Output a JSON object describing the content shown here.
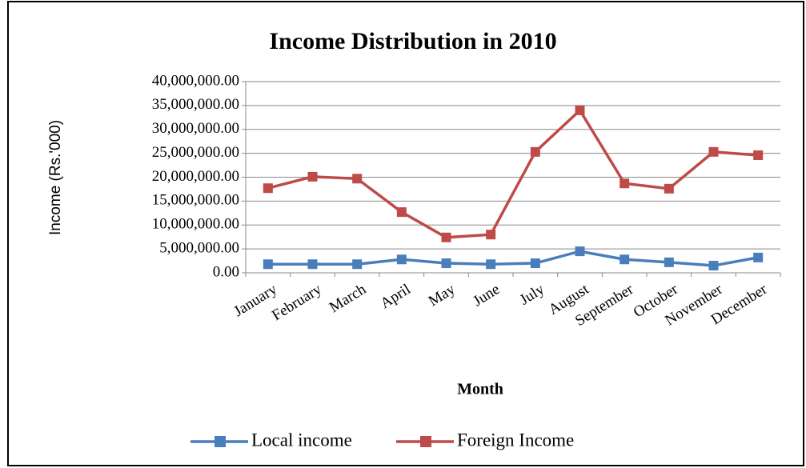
{
  "chart_data": {
    "type": "line",
    "title": "Income Distribution in 2010",
    "x_label": "Month",
    "y_label": "Income (Rs.'000)",
    "categories": [
      "January",
      "February",
      "March",
      "April",
      "May",
      "June",
      "July",
      "August",
      "September",
      "October",
      "November",
      "December"
    ],
    "series": [
      {
        "name": "Local income",
        "color": "#4a7ebb",
        "values": [
          1800000,
          1800000,
          1800000,
          2800000,
          2000000,
          1800000,
          2000000,
          4500000,
          2800000,
          2200000,
          1500000,
          3200000
        ]
      },
      {
        "name": "Foreign Income",
        "color": "#be4b48",
        "values": [
          17700000,
          20100000,
          19700000,
          12700000,
          7400000,
          8000000,
          25300000,
          34000000,
          18700000,
          17600000,
          25300000,
          24600000
        ]
      }
    ],
    "ylim": [
      0,
      40000000
    ],
    "yticks": [
      {
        "value": 0,
        "label": "0.00"
      },
      {
        "value": 5000000,
        "label": "5,000,000.00"
      },
      {
        "value": 10000000,
        "label": "10,000,000.00"
      },
      {
        "value": 15000000,
        "label": "15,000,000.00"
      },
      {
        "value": 20000000,
        "label": "20,000,000.00"
      },
      {
        "value": 25000000,
        "label": "25,000,000.00"
      },
      {
        "value": 30000000,
        "label": "30,000,000.00"
      },
      {
        "value": 35000000,
        "label": "35,000,000.00"
      },
      {
        "value": 40000000,
        "label": "40,000,000.00"
      }
    ],
    "grid": true,
    "legend": "bottom"
  }
}
